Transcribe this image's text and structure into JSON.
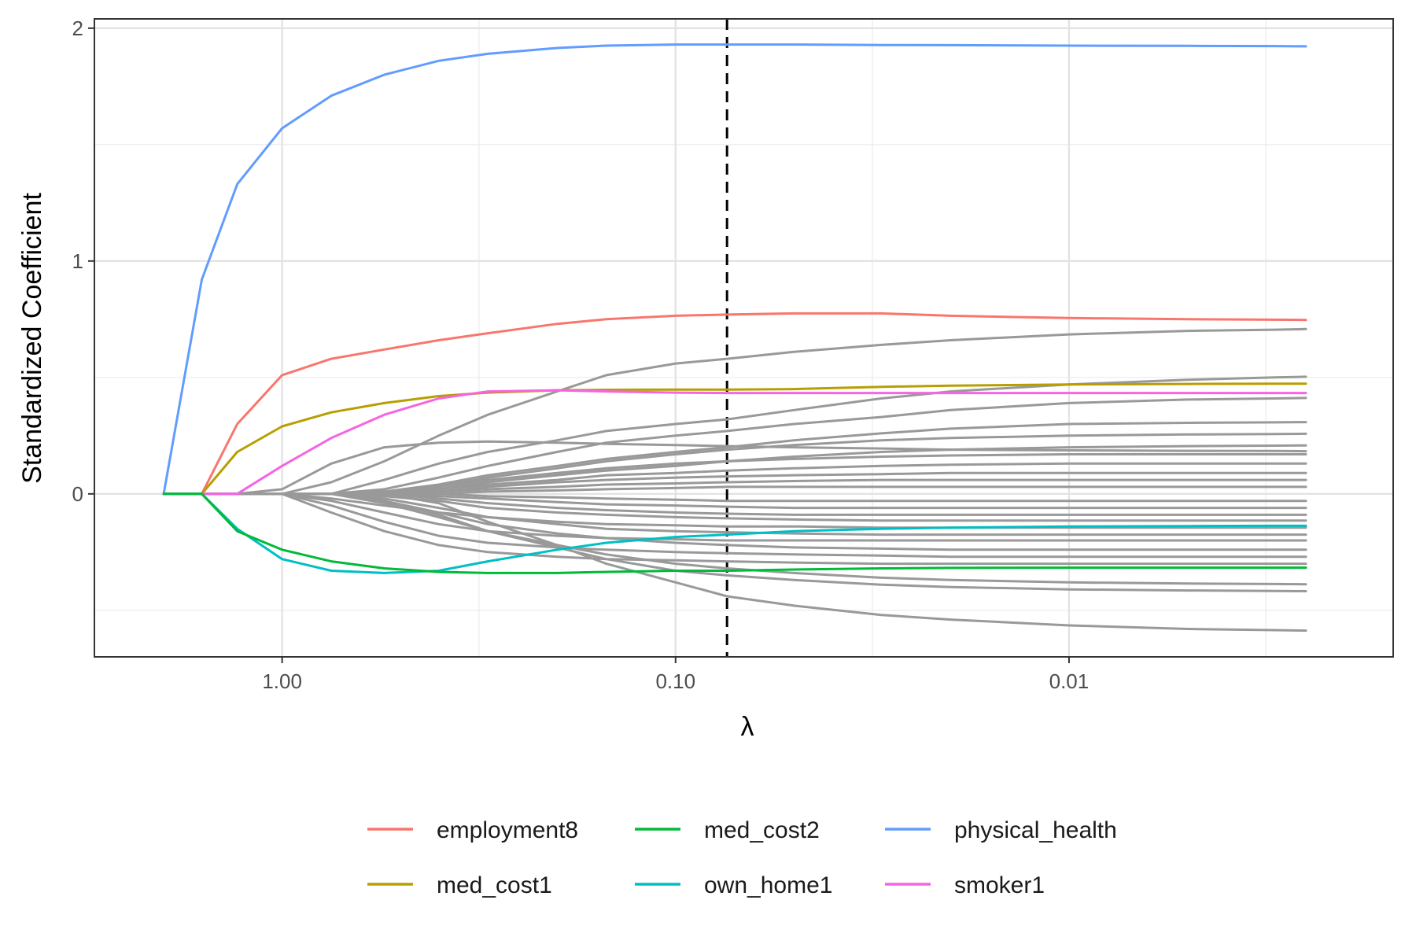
{
  "chart_data": {
    "type": "line",
    "title": "",
    "xlabel": "λ",
    "ylabel": "Standardized Coefficient",
    "x_scale": "log10-reversed",
    "xlim": [
      3.0,
      0.0015
    ],
    "ylim": [
      -0.7,
      2.04
    ],
    "grid": true,
    "legend_position": "bottom",
    "x_ticks": [
      {
        "value": 1.0,
        "label": "1.00"
      },
      {
        "value": 0.1,
        "label": "0.10"
      },
      {
        "value": 0.01,
        "label": "0.01"
      }
    ],
    "y_ticks": [
      {
        "value": 0,
        "label": "0"
      },
      {
        "value": 1,
        "label": "1"
      },
      {
        "value": 2,
        "label": "2"
      }
    ],
    "y_minor_gridlines": [
      -0.5,
      0.5,
      1.5
    ],
    "x_minor_gridlines": [
      0.316,
      0.0316,
      0.00316
    ],
    "reference_line": {
      "x": 0.074,
      "style": "dashed",
      "color": "#000000"
    },
    "x": [
      2.0,
      1.6,
      1.3,
      1.0,
      0.75,
      0.55,
      0.4,
      0.3,
      0.2,
      0.15,
      0.1,
      0.074,
      0.05,
      0.03,
      0.02,
      0.01,
      0.005,
      0.003,
      0.0025
    ],
    "series": [
      {
        "name": "physical_health",
        "color": "#619CFF",
        "values": [
          0.0,
          0.92,
          1.33,
          1.57,
          1.71,
          1.8,
          1.86,
          1.89,
          1.915,
          1.925,
          1.93,
          1.93,
          1.93,
          1.928,
          1.927,
          1.925,
          1.924,
          1.923,
          1.922
        ]
      },
      {
        "name": "employment8",
        "color": "#F8766D",
        "values": [
          0.0,
          0.0,
          0.3,
          0.51,
          0.58,
          0.62,
          0.66,
          0.69,
          0.73,
          0.75,
          0.765,
          0.77,
          0.775,
          0.775,
          0.765,
          0.755,
          0.75,
          0.748,
          0.747
        ]
      },
      {
        "name": "med_cost1",
        "color": "#B79F00",
        "values": [
          0.0,
          0.0,
          0.18,
          0.29,
          0.35,
          0.39,
          0.42,
          0.435,
          0.445,
          0.447,
          0.448,
          0.448,
          0.45,
          0.46,
          0.465,
          0.47,
          0.472,
          0.473,
          0.473
        ]
      },
      {
        "name": "smoker1",
        "color": "#F564E3",
        "values": [
          0.0,
          0.0,
          0.0,
          0.12,
          0.24,
          0.34,
          0.41,
          0.44,
          0.445,
          0.44,
          0.435,
          0.433,
          0.433,
          0.433,
          0.433,
          0.433,
          0.433,
          0.433,
          0.433
        ]
      },
      {
        "name": "own_home1",
        "color": "#00BFC4",
        "values": [
          0.0,
          0.0,
          -0.15,
          -0.28,
          -0.33,
          -0.34,
          -0.33,
          -0.29,
          -0.24,
          -0.21,
          -0.185,
          -0.175,
          -0.16,
          -0.15,
          -0.145,
          -0.14,
          -0.138,
          -0.137,
          -0.137
        ]
      },
      {
        "name": "med_cost2",
        "color": "#00BA38",
        "values": [
          0.0,
          0.0,
          -0.16,
          -0.24,
          -0.29,
          -0.32,
          -0.335,
          -0.34,
          -0.34,
          -0.335,
          -0.33,
          -0.33,
          -0.325,
          -0.32,
          -0.318,
          -0.317,
          -0.317,
          -0.317,
          -0.317
        ]
      },
      {
        "color": "#999999",
        "values": [
          0,
          0,
          0,
          0,
          0.05,
          0.14,
          0.25,
          0.34,
          0.44,
          0.51,
          0.56,
          0.58,
          0.61,
          0.64,
          0.66,
          0.685,
          0.7,
          0.705,
          0.708
        ]
      },
      {
        "color": "#999999",
        "values": [
          0,
          0,
          0,
          0.02,
          0.13,
          0.2,
          0.22,
          0.225,
          0.22,
          0.215,
          0.21,
          0.205,
          0.2,
          0.195,
          0.19,
          0.187,
          0.185,
          0.184,
          0.183
        ]
      },
      {
        "color": "#999999",
        "values": [
          0,
          0,
          0,
          0,
          0,
          0.06,
          0.13,
          0.18,
          0.23,
          0.27,
          0.3,
          0.32,
          0.36,
          0.41,
          0.44,
          0.47,
          0.49,
          0.5,
          0.503
        ]
      },
      {
        "color": "#999999",
        "values": [
          0,
          0,
          0,
          0,
          0,
          0.02,
          0.07,
          0.12,
          0.18,
          0.22,
          0.25,
          0.27,
          0.3,
          0.33,
          0.36,
          0.39,
          0.405,
          0.41,
          0.412
        ]
      },
      {
        "color": "#999999",
        "values": [
          0,
          0,
          0,
          0,
          0,
          0.01,
          0.04,
          0.08,
          0.12,
          0.15,
          0.18,
          0.2,
          0.23,
          0.26,
          0.28,
          0.3,
          0.305,
          0.307,
          0.308
        ]
      },
      {
        "color": "#999999",
        "values": [
          0,
          0,
          0,
          0,
          0,
          0,
          0.03,
          0.07,
          0.11,
          0.14,
          0.17,
          0.19,
          0.21,
          0.23,
          0.24,
          0.25,
          0.255,
          0.257,
          0.258
        ]
      },
      {
        "color": "#999999",
        "values": [
          0,
          0,
          0,
          0,
          0,
          0,
          0.02,
          0.05,
          0.08,
          0.1,
          0.12,
          0.14,
          0.16,
          0.18,
          0.19,
          0.2,
          0.205,
          0.207,
          0.208
        ]
      },
      {
        "color": "#999999",
        "values": [
          0,
          0,
          0,
          0,
          0,
          0.01,
          0.03,
          0.06,
          0.09,
          0.11,
          0.13,
          0.14,
          0.15,
          0.16,
          0.165,
          0.17,
          0.17,
          0.17,
          0.17
        ]
      },
      {
        "color": "#999999",
        "values": [
          0,
          0,
          0,
          0,
          0,
          0,
          0.02,
          0.04,
          0.06,
          0.08,
          0.09,
          0.1,
          0.11,
          0.12,
          0.125,
          0.13,
          0.13,
          0.13,
          0.13
        ]
      },
      {
        "color": "#999999",
        "values": [
          0,
          0,
          0,
          0,
          0,
          0,
          0.01,
          0.03,
          0.05,
          0.06,
          0.07,
          0.075,
          0.08,
          0.085,
          0.09,
          0.09,
          0.09,
          0.09,
          0.09
        ]
      },
      {
        "color": "#999999",
        "values": [
          0,
          0,
          0,
          0,
          0,
          0,
          0.01,
          0.02,
          0.03,
          0.04,
          0.045,
          0.05,
          0.055,
          0.06,
          0.06,
          0.06,
          0.06,
          0.06,
          0.06
        ]
      },
      {
        "color": "#999999",
        "values": [
          0,
          0,
          0,
          0,
          0,
          0,
          0,
          0.01,
          0.015,
          0.02,
          0.025,
          0.03,
          0.03,
          0.03,
          0.03,
          0.03,
          0.03,
          0.03,
          0.03
        ]
      },
      {
        "color": "#999999",
        "values": [
          0,
          0,
          0,
          0,
          0,
          0,
          0,
          -0.01,
          -0.015,
          -0.02,
          -0.025,
          -0.03,
          -0.03,
          -0.03,
          -0.03,
          -0.03,
          -0.03,
          -0.03,
          -0.03
        ]
      },
      {
        "color": "#999999",
        "values": [
          0,
          0,
          0,
          0,
          0,
          0,
          -0.01,
          -0.02,
          -0.035,
          -0.045,
          -0.05,
          -0.055,
          -0.06,
          -0.06,
          -0.06,
          -0.06,
          -0.06,
          -0.06,
          -0.06
        ]
      },
      {
        "color": "#999999",
        "values": [
          0,
          0,
          0,
          0,
          0,
          0,
          -0.02,
          -0.04,
          -0.06,
          -0.07,
          -0.08,
          -0.085,
          -0.09,
          -0.09,
          -0.09,
          -0.09,
          -0.09,
          -0.09,
          -0.09
        ]
      },
      {
        "color": "#999999",
        "values": [
          0,
          0,
          0,
          0,
          0,
          -0.01,
          -0.03,
          -0.06,
          -0.08,
          -0.09,
          -0.1,
          -0.105,
          -0.11,
          -0.115,
          -0.115,
          -0.115,
          -0.115,
          -0.115,
          -0.115
        ]
      },
      {
        "color": "#999999",
        "values": [
          0,
          0,
          0,
          0,
          -0.02,
          -0.05,
          -0.08,
          -0.1,
          -0.12,
          -0.13,
          -0.135,
          -0.14,
          -0.14,
          -0.145,
          -0.145,
          -0.145,
          -0.145,
          -0.145,
          -0.145
        ]
      },
      {
        "color": "#999999",
        "values": [
          0,
          0,
          0,
          0,
          0,
          -0.02,
          -0.06,
          -0.1,
          -0.13,
          -0.15,
          -0.16,
          -0.165,
          -0.17,
          -0.175,
          -0.175,
          -0.175,
          -0.175,
          -0.175,
          -0.175
        ]
      },
      {
        "color": "#999999",
        "values": [
          0,
          0,
          0,
          0,
          -0.03,
          -0.08,
          -0.13,
          -0.16,
          -0.18,
          -0.19,
          -0.195,
          -0.2,
          -0.2,
          -0.2,
          -0.2,
          -0.2,
          -0.2,
          -0.2,
          -0.2
        ]
      },
      {
        "color": "#999999",
        "values": [
          0,
          0,
          0,
          0,
          0,
          -0.03,
          -0.08,
          -0.13,
          -0.17,
          -0.19,
          -0.21,
          -0.22,
          -0.23,
          -0.235,
          -0.24,
          -0.24,
          -0.24,
          -0.24,
          -0.24
        ]
      },
      {
        "color": "#999999",
        "values": [
          0,
          0,
          0,
          0,
          -0.05,
          -0.12,
          -0.18,
          -0.21,
          -0.23,
          -0.24,
          -0.25,
          -0.255,
          -0.26,
          -0.265,
          -0.27,
          -0.27,
          -0.27,
          -0.27,
          -0.27
        ]
      },
      {
        "color": "#999999",
        "values": [
          0,
          0,
          0,
          0,
          -0.08,
          -0.16,
          -0.22,
          -0.25,
          -0.27,
          -0.28,
          -0.285,
          -0.29,
          -0.295,
          -0.3,
          -0.3,
          -0.3,
          -0.3,
          -0.3,
          -0.3
        ]
      },
      {
        "color": "#999999",
        "values": [
          0,
          0,
          0,
          0,
          0,
          -0.04,
          -0.1,
          -0.16,
          -0.22,
          -0.26,
          -0.3,
          -0.32,
          -0.34,
          -0.36,
          -0.37,
          -0.38,
          -0.385,
          -0.387,
          -0.388
        ]
      },
      {
        "color": "#999999",
        "values": [
          0,
          0,
          0,
          0,
          0,
          -0.03,
          -0.09,
          -0.16,
          -0.23,
          -0.28,
          -0.33,
          -0.35,
          -0.37,
          -0.39,
          -0.4,
          -0.41,
          -0.415,
          -0.417,
          -0.418
        ]
      },
      {
        "color": "#999999",
        "values": [
          0,
          0,
          0,
          0,
          0,
          0,
          -0.04,
          -0.12,
          -0.22,
          -0.3,
          -0.38,
          -0.44,
          -0.48,
          -0.52,
          -0.54,
          -0.565,
          -0.58,
          -0.585,
          -0.587
        ]
      }
    ],
    "legend": [
      {
        "name": "employment8",
        "color": "#F8766D"
      },
      {
        "name": "med_cost2",
        "color": "#00BA38"
      },
      {
        "name": "physical_health",
        "color": "#619CFF"
      },
      {
        "name": "med_cost1",
        "color": "#B79F00"
      },
      {
        "name": "own_home1",
        "color": "#00BFC4"
      },
      {
        "name": "smoker1",
        "color": "#F564E3"
      }
    ]
  }
}
